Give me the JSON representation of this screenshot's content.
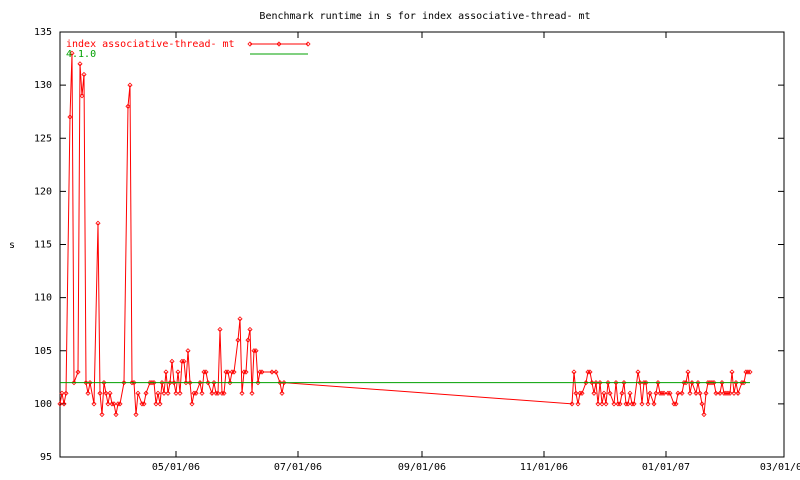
{
  "chart_data": {
    "type": "line",
    "title": "Benchmark runtime in s for index associative-thread-  mt",
    "y_label": "s",
    "xlim": [
      "2006-03-04",
      "2007-03-01"
    ],
    "xticks": [
      {
        "value": "2006-05-01",
        "label": "05/01/06"
      },
      {
        "value": "2006-07-01",
        "label": "07/01/06"
      },
      {
        "value": "2006-09-01",
        "label": "09/01/06"
      },
      {
        "value": "2006-11-01",
        "label": "11/01/06"
      },
      {
        "value": "2007-01-01",
        "label": "01/01/07"
      },
      {
        "value": "2007-03-01",
        "label": "03/01/07"
      }
    ],
    "ylim": [
      95,
      135
    ],
    "yticks": [
      95,
      100,
      105,
      110,
      115,
      120,
      125,
      130,
      135
    ],
    "legend": "top-left",
    "series": [
      {
        "name": "index associative-thread-  mt",
        "color": "#ff0000",
        "markers": true,
        "x": [
          "2006-03-04",
          "2006-03-05",
          "2006-03-06",
          "2006-03-07",
          "2006-03-09",
          "2006-03-10",
          "2006-03-11",
          "2006-03-13",
          "2006-03-14",
          "2006-03-15",
          "2006-03-16",
          "2006-03-17",
          "2006-03-18",
          "2006-03-19",
          "2006-03-21",
          "2006-03-23",
          "2006-03-24",
          "2006-03-25",
          "2006-03-26",
          "2006-03-27",
          "2006-03-28",
          "2006-03-29",
          "2006-03-30",
          "2006-03-31",
          "2006-04-01",
          "2006-04-02",
          "2006-04-03",
          "2006-04-05",
          "2006-04-07",
          "2006-04-08",
          "2006-04-09",
          "2006-04-10",
          "2006-04-11",
          "2006-04-12",
          "2006-04-14",
          "2006-04-15",
          "2006-04-16",
          "2006-04-18",
          "2006-04-19",
          "2006-04-20",
          "2006-04-21",
          "2006-04-22",
          "2006-04-23",
          "2006-04-24",
          "2006-04-25",
          "2006-04-26",
          "2006-04-27",
          "2006-04-28",
          "2006-04-29",
          "2006-04-30",
          "2006-05-01",
          "2006-05-02",
          "2006-05-03",
          "2006-05-04",
          "2006-05-05",
          "2006-05-06",
          "2006-05-07",
          "2006-05-08",
          "2006-05-09",
          "2006-05-10",
          "2006-05-11",
          "2006-05-13",
          "2006-05-14",
          "2006-05-15",
          "2006-05-16",
          "2006-05-17",
          "2006-05-19",
          "2006-05-20",
          "2006-05-21",
          "2006-05-22",
          "2006-05-23",
          "2006-05-24",
          "2006-05-25",
          "2006-05-26",
          "2006-05-27",
          "2006-05-28",
          "2006-05-29",
          "2006-05-30",
          "2006-06-01",
          "2006-06-02",
          "2006-06-03",
          "2006-06-04",
          "2006-06-05",
          "2006-06-06",
          "2006-06-07",
          "2006-06-08",
          "2006-06-09",
          "2006-06-10",
          "2006-06-11",
          "2006-06-12",
          "2006-06-13",
          "2006-06-18",
          "2006-06-20",
          "2006-06-22",
          "2006-06-23",
          "2006-06-24",
          "2006-11-15",
          "2006-11-16",
          "2006-11-17",
          "2006-11-18",
          "2006-11-19",
          "2006-11-20",
          "2006-11-22",
          "2006-11-23",
          "2006-11-24",
          "2006-11-25",
          "2006-11-26",
          "2006-11-27",
          "2006-11-28",
          "2006-11-29",
          "2006-11-30",
          "2006-12-01",
          "2006-12-02",
          "2006-12-03",
          "2006-12-04",
          "2006-12-06",
          "2006-12-07",
          "2006-12-08",
          "2006-12-09",
          "2006-12-10",
          "2006-12-11",
          "2006-12-12",
          "2006-12-13",
          "2006-12-14",
          "2006-12-15",
          "2006-12-16",
          "2006-12-18",
          "2006-12-19",
          "2006-12-20",
          "2006-12-21",
          "2006-12-22",
          "2006-12-23",
          "2006-12-24",
          "2006-12-26",
          "2006-12-27",
          "2006-12-28",
          "2006-12-29",
          "2006-12-30",
          "2006-12-31",
          "2007-01-02",
          "2007-01-03",
          "2007-01-05",
          "2007-01-06",
          "2007-01-07",
          "2007-01-09",
          "2007-01-10",
          "2007-01-11",
          "2007-01-12",
          "2007-01-13",
          "2007-01-14",
          "2007-01-16",
          "2007-01-17",
          "2007-01-18",
          "2007-01-19",
          "2007-01-20",
          "2007-01-21",
          "2007-01-22",
          "2007-01-23",
          "2007-01-24",
          "2007-01-25",
          "2007-01-26",
          "2007-01-28",
          "2007-01-29",
          "2007-01-30",
          "2007-01-31",
          "2007-02-01",
          "2007-02-02",
          "2007-02-03",
          "2007-02-04",
          "2007-02-05",
          "2007-02-06",
          "2007-02-08",
          "2007-02-09",
          "2007-02-10",
          "2007-02-11",
          "2007-02-12"
        ],
        "values": [
          100,
          101,
          100,
          101,
          127,
          133,
          102,
          103,
          132,
          129,
          131,
          102,
          101,
          102,
          100,
          117,
          101,
          99,
          102,
          101,
          100,
          101,
          100,
          100,
          99,
          100,
          100,
          102,
          128,
          130,
          102,
          102,
          99,
          101,
          100,
          100,
          101,
          102,
          102,
          102,
          100,
          101,
          100,
          102,
          101,
          103,
          101,
          102,
          104,
          102,
          101,
          103,
          101,
          104,
          104,
          102,
          105,
          102,
          100,
          101,
          101,
          102,
          101,
          103,
          103,
          102,
          101,
          102,
          101,
          101,
          107,
          101,
          101,
          103,
          103,
          102,
          103,
          103,
          106,
          108,
          101,
          103,
          103,
          106,
          107,
          101,
          105,
          105,
          102,
          103,
          103,
          103,
          103,
          102,
          101,
          102,
          100,
          103,
          101,
          100,
          101,
          101,
          102,
          103,
          103,
          102,
          101,
          102,
          100,
          102,
          100,
          101,
          100,
          102,
          101,
          100,
          102,
          100,
          100,
          101,
          102,
          100,
          100,
          101,
          100,
          100,
          103,
          102,
          100,
          102,
          102,
          100,
          101,
          100,
          101,
          102,
          101,
          101,
          101,
          101,
          101,
          100,
          100,
          101,
          101,
          102,
          102,
          103,
          101,
          102,
          101,
          102,
          101,
          100,
          99,
          101,
          102,
          102,
          102,
          102,
          101,
          101,
          102,
          101,
          101,
          101,
          101,
          103,
          101,
          102,
          101,
          102,
          102,
          103,
          103,
          103
        ]
      },
      {
        "name": "4.1.0",
        "color": "#00a000",
        "markers": false,
        "x": [
          "2006-03-04",
          "2007-02-12"
        ],
        "values": [
          102,
          102
        ]
      }
    ]
  }
}
